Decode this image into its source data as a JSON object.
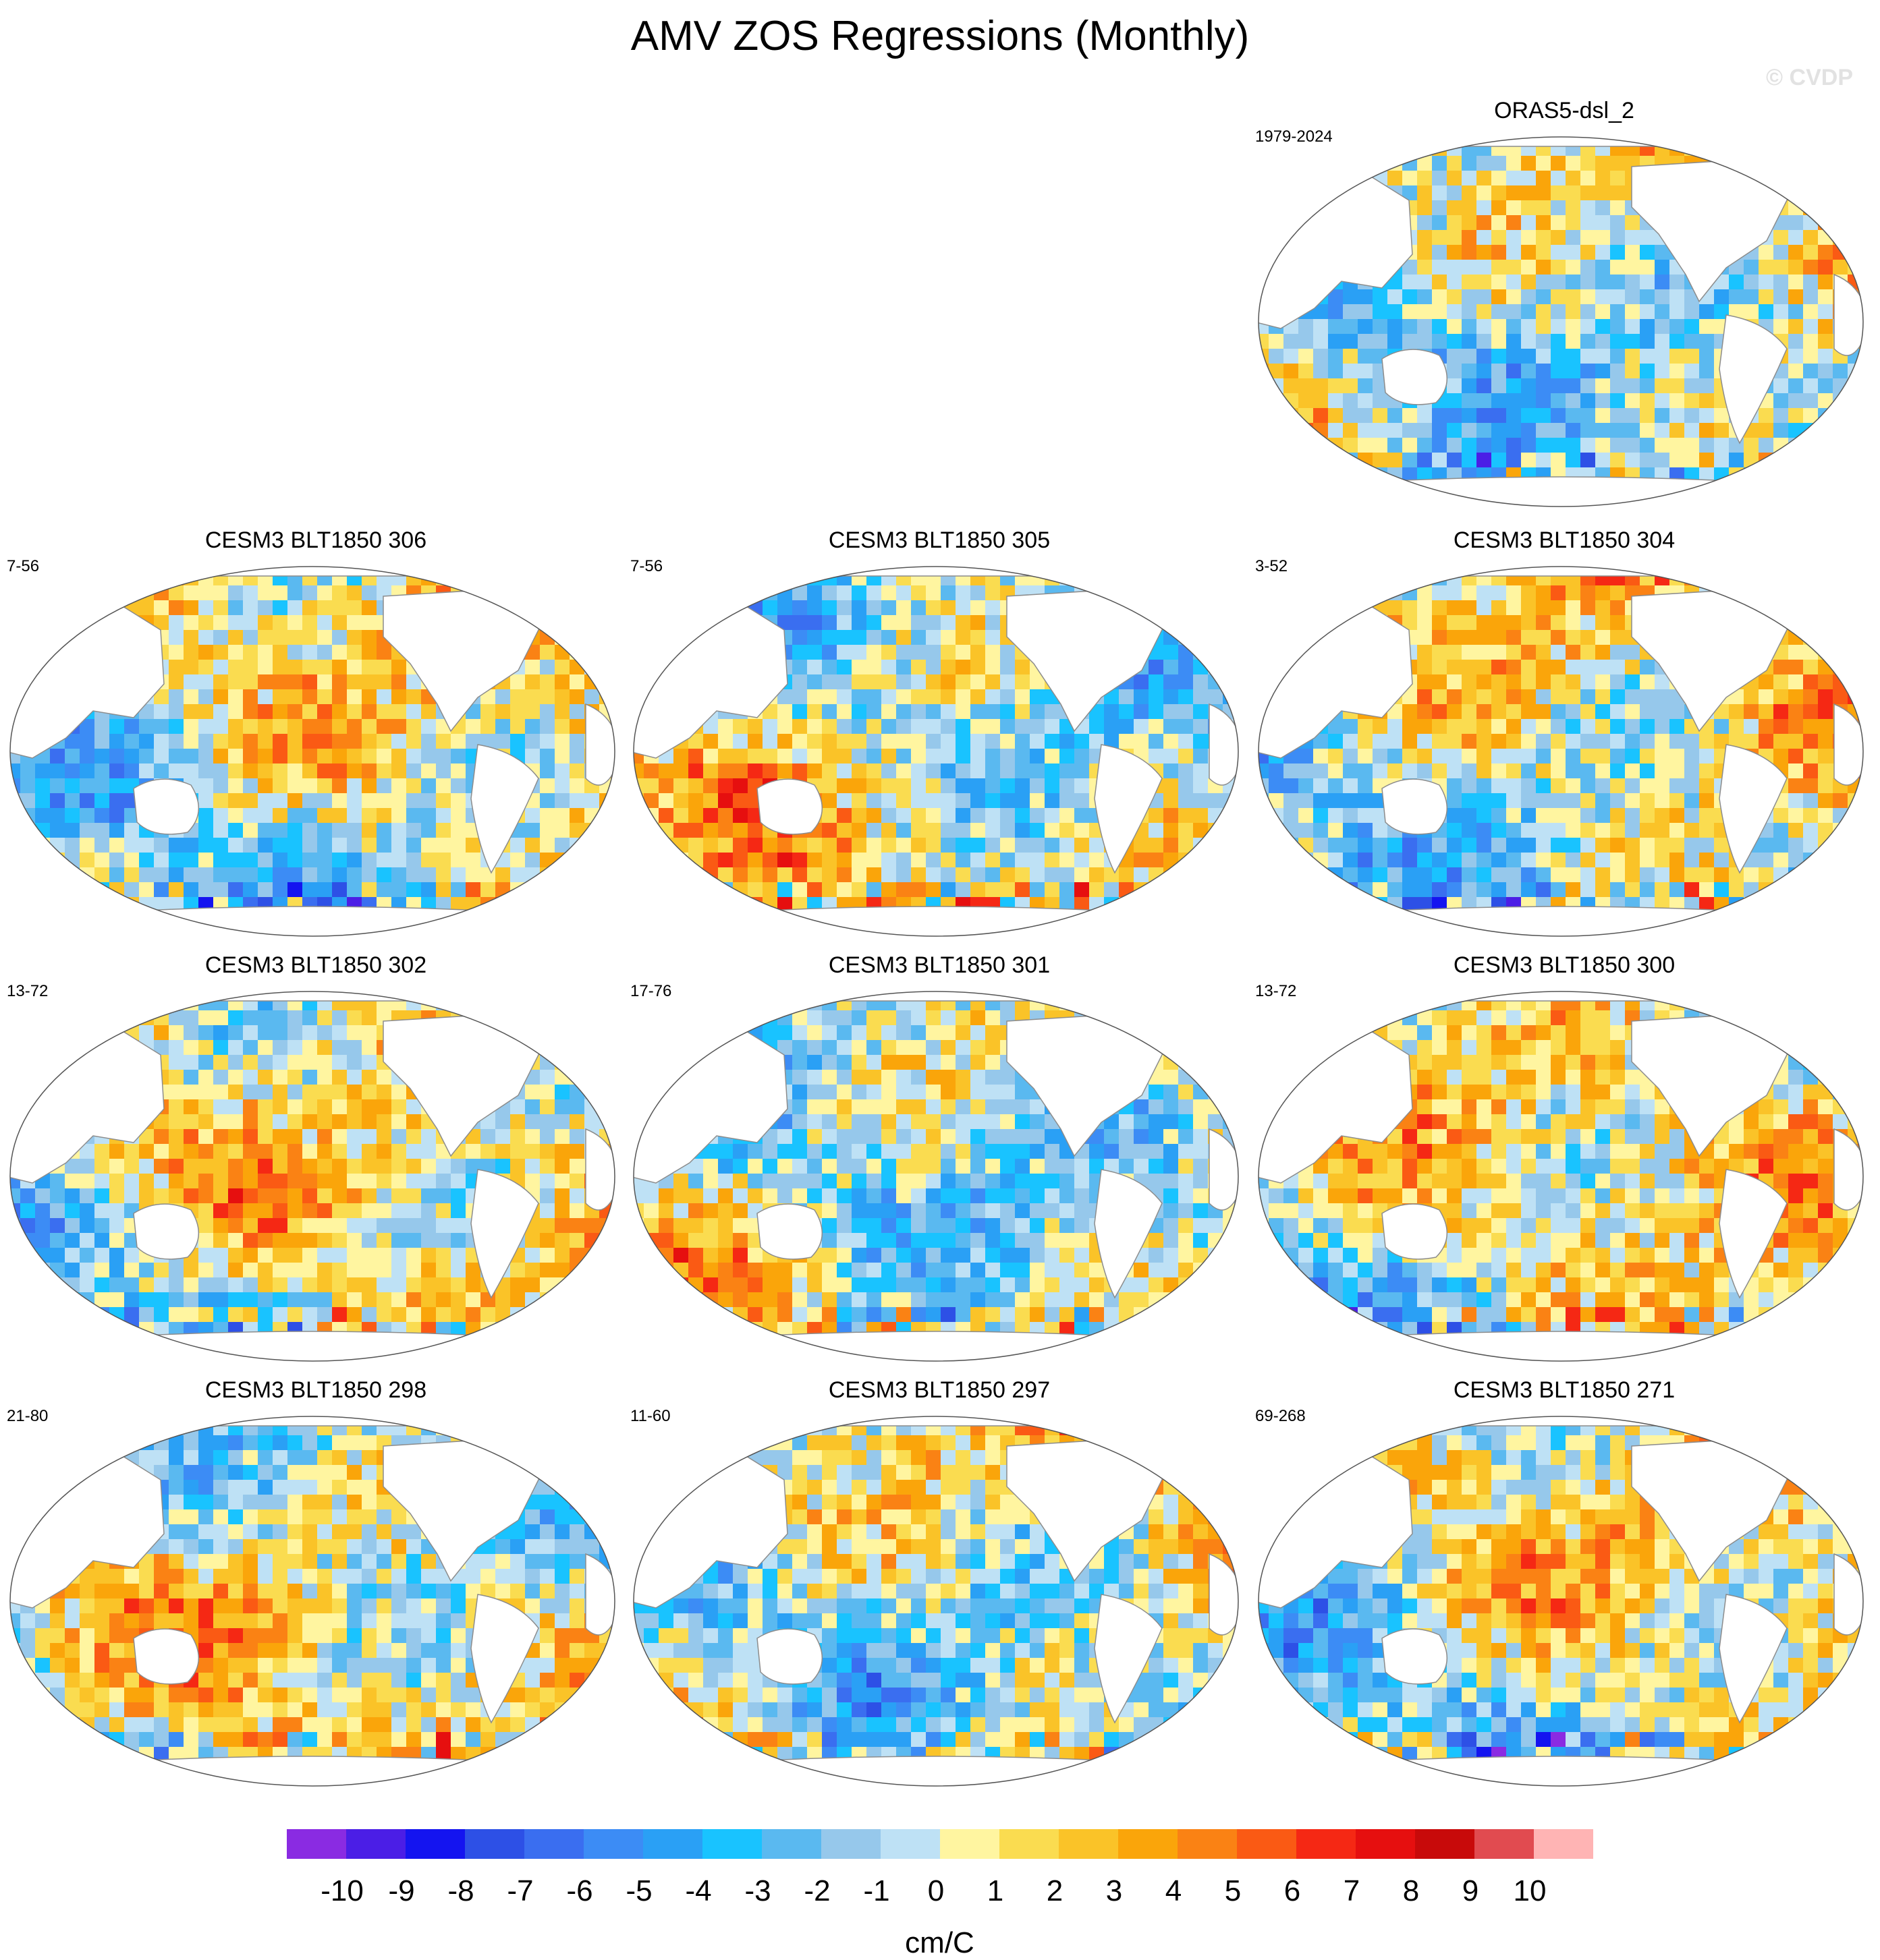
{
  "title": "AMV ZOS Regressions (Monthly)",
  "watermark": "© CVDP",
  "chart_data": {
    "type": "heatmap",
    "title": "AMV ZOS Regressions (Monthly)",
    "projection": "Robinson global maps, Pacific-centered",
    "variable": "ZOS regression on AMV",
    "panels": [
      {
        "name": "ORAS5-dsl_2",
        "period": "1979-2024"
      },
      {
        "name": "CESM3 BLT1850 306",
        "period": "7-56"
      },
      {
        "name": "CESM3 BLT1850 305",
        "period": "7-56"
      },
      {
        "name": "CESM3 BLT1850 304",
        "period": "3-52"
      },
      {
        "name": "CESM3 BLT1850 302",
        "period": "13-72"
      },
      {
        "name": "CESM3 BLT1850 301",
        "period": "17-76"
      },
      {
        "name": "CESM3 BLT1850 300",
        "period": "13-72"
      },
      {
        "name": "CESM3 BLT1850 298",
        "period": "21-80"
      },
      {
        "name": "CESM3 BLT1850 297",
        "period": "11-60"
      },
      {
        "name": "CESM3 BLT1850 271",
        "period": "69-268"
      }
    ],
    "colorbar": {
      "units": "cm/C",
      "tick_labels": [
        "-10",
        "-9",
        "-8",
        "-7",
        "-6",
        "-5",
        "-4",
        "-3",
        "-2",
        "-1",
        "0",
        "1",
        "2",
        "3",
        "4",
        "5",
        "6",
        "7",
        "8",
        "9",
        "10"
      ],
      "levels": [
        -10,
        -9,
        -8,
        -7,
        -6,
        -5,
        -4,
        -3,
        -2,
        -1,
        0,
        1,
        2,
        3,
        4,
        5,
        6,
        7,
        8,
        9,
        10
      ],
      "colors": [
        "#8a2be2",
        "#4b1ee6",
        "#1414f0",
        "#2d50e6",
        "#3a6ef0",
        "#3c8cf5",
        "#2aa0f5",
        "#19c3ff",
        "#5ab9f0",
        "#96c8eb",
        "#bee1f5",
        "#fff5a0",
        "#fadc50",
        "#fac328",
        "#faa50a",
        "#fa8214",
        "#fa5a14",
        "#f52814",
        "#e60f0f",
        "#c80a0a",
        "#e14b50",
        "#ffb4b4"
      ]
    }
  }
}
